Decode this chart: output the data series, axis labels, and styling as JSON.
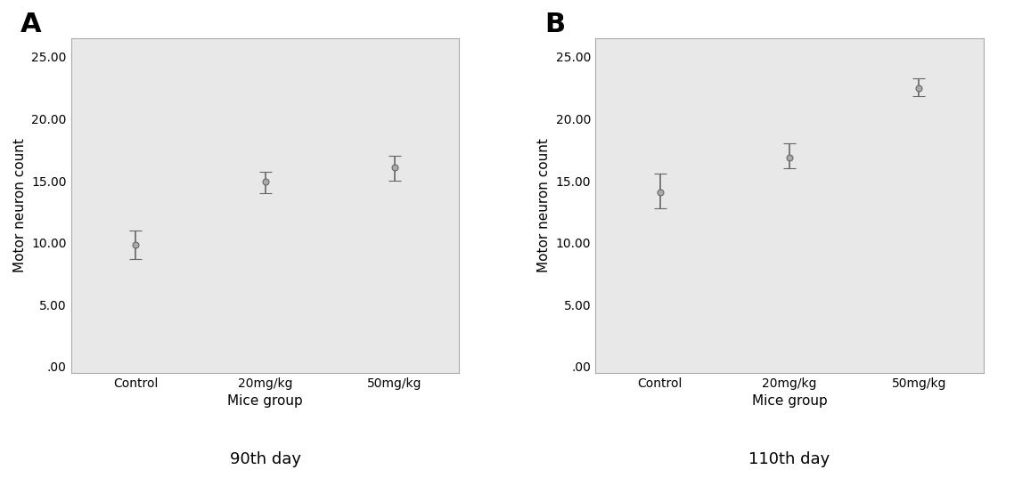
{
  "panel_A": {
    "label": "A",
    "title": "90th day",
    "xlabel": "Mice group",
    "ylabel": "Motor neuron count",
    "categories": [
      "Control",
      "20mg/kg",
      "50mg/kg"
    ],
    "means": [
      9.8,
      14.9,
      16.1
    ],
    "errors_upper": [
      1.2,
      0.8,
      0.9
    ],
    "errors_lower": [
      1.1,
      0.9,
      1.1
    ]
  },
  "panel_B": {
    "label": "B",
    "title": "110th day",
    "xlabel": "Mice group",
    "ylabel": "Motor neuron count",
    "categories": [
      "Control",
      "20mg/kg",
      "50mg/kg"
    ],
    "means": [
      14.1,
      16.9,
      22.5
    ],
    "errors_upper": [
      1.5,
      1.1,
      0.8
    ],
    "errors_lower": [
      1.3,
      0.9,
      0.7
    ]
  },
  "ylim": [
    -0.5,
    26.5
  ],
  "yticks": [
    0.0,
    5.0,
    10.0,
    15.0,
    20.0,
    25.0
  ],
  "ytick_labels": [
    ".00",
    "5.00",
    "10.00",
    "15.00",
    "20.00",
    "25.00"
  ],
  "bg_color": "#e8e8e8",
  "marker_color": "#666666",
  "error_color": "#666666",
  "marker_size": 5,
  "capsize": 5,
  "label_fontsize": 22,
  "axis_label_fontsize": 11,
  "tick_fontsize": 10,
  "title_fontsize": 13
}
